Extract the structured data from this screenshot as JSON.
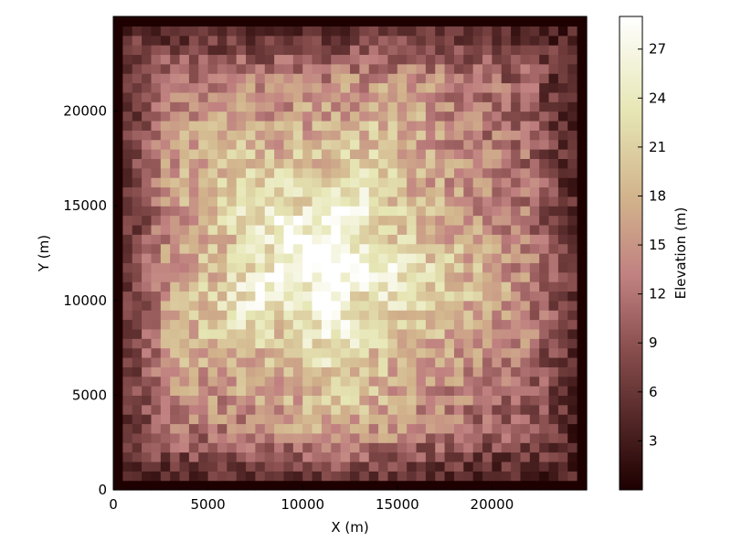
{
  "chart_data": {
    "type": "heatmap",
    "title": "",
    "xlabel": "X (m)",
    "ylabel": "Y (m)",
    "xlim": [
      0,
      25000
    ],
    "ylim": [
      0,
      25000
    ],
    "x_ticks": [
      "0",
      "5000",
      "10000",
      "15000",
      "20000"
    ],
    "y_ticks": [
      "0",
      "5000",
      "10000",
      "15000",
      "20000"
    ],
    "grid": false,
    "grid_size": [
      50,
      50
    ],
    "cell_size_m": 500,
    "value_range": [
      0,
      29
    ],
    "colormap": "pink",
    "colormap_stops": [
      "#1e0000",
      "#8a4f4f",
      "#c08080",
      "#d2b48c",
      "#e6e6b4",
      "#ffffff"
    ],
    "peak_location_m": [
      11000,
      12000
    ],
    "boundary_value": 0,
    "colorbar": {
      "label": "Elevation (m)",
      "ticks": [
        "3",
        "6",
        "9",
        "12",
        "15",
        "18",
        "21",
        "24",
        "27"
      ],
      "placement": "right"
    }
  }
}
